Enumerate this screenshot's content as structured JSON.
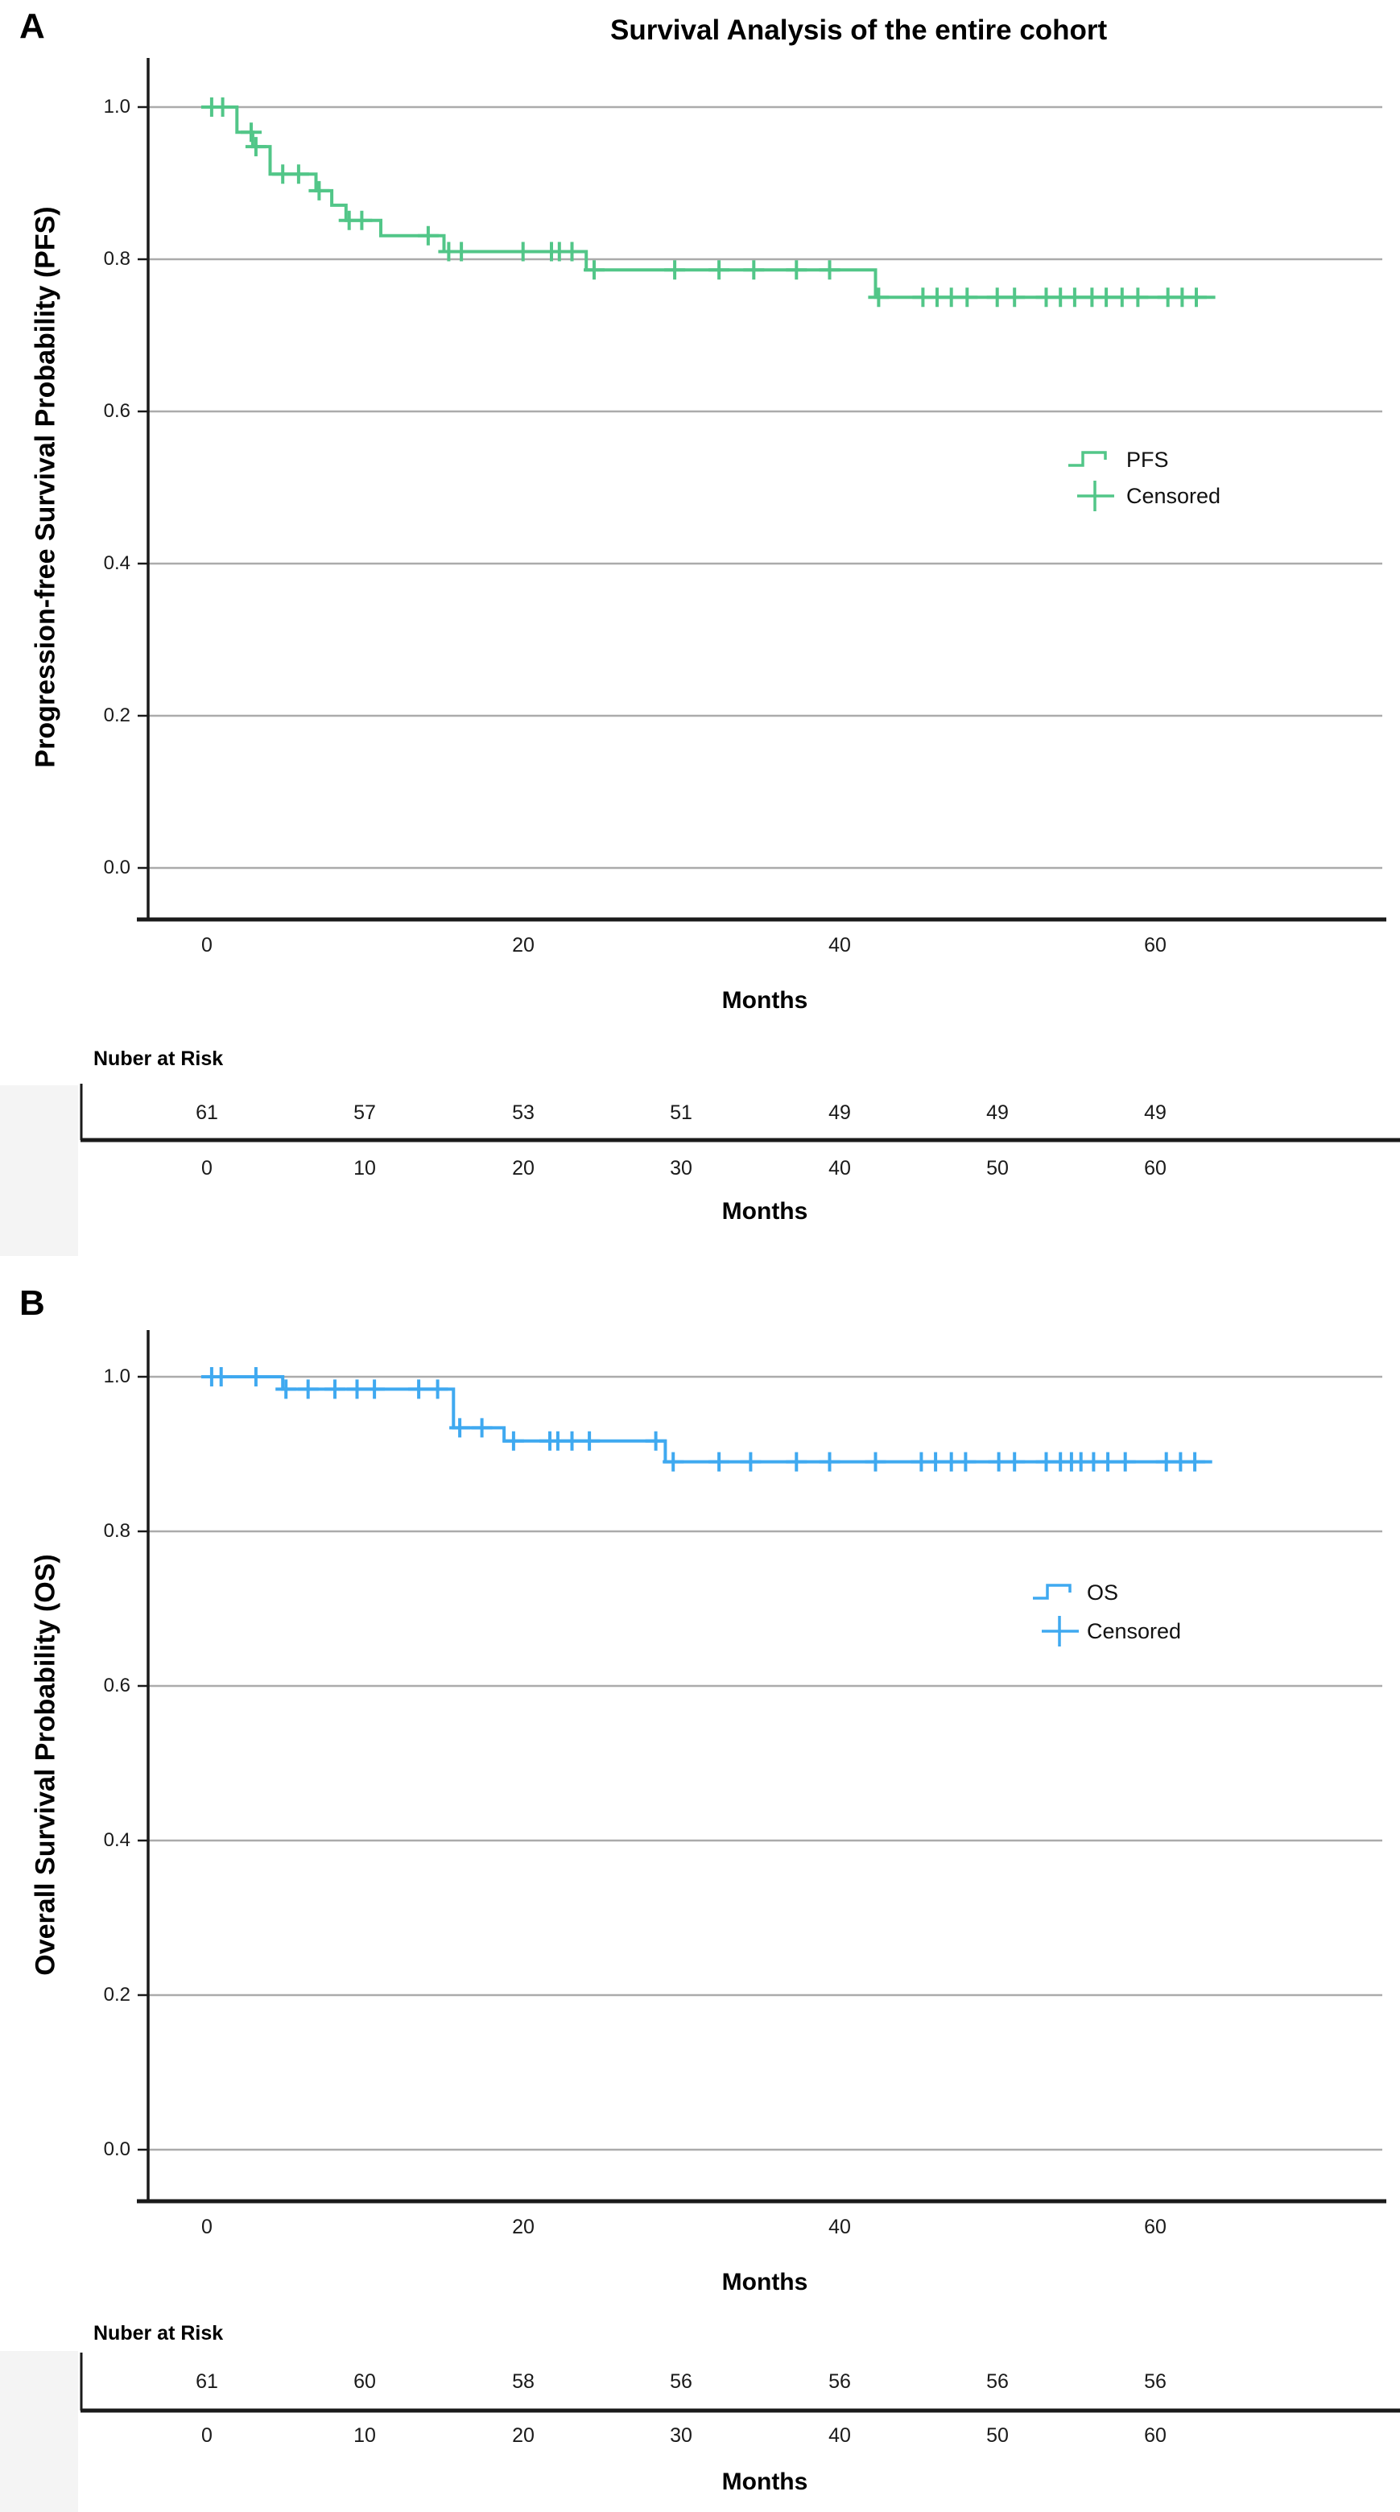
{
  "chart_data": [
    {
      "type": "line",
      "chart_kind": "kaplan-meier-step",
      "panel_label": "A",
      "title": "Survival Analysis of the entire cohort",
      "xlabel": "Months",
      "ylabel": "Progression-free Survival Probability (PFS)",
      "xlim": [
        -4,
        75
      ],
      "ylim": [
        -0.05,
        1.05
      ],
      "grid": true,
      "x_tick_labels": [
        "0",
        "20",
        "40",
        "60"
      ],
      "x_tick_values": [
        0,
        20,
        40,
        60
      ],
      "y_tick_labels": [
        "1.0",
        "0.8",
        "0.6",
        "0.4",
        "0.2",
        "0.0"
      ],
      "y_tick_values": [
        1.0,
        0.8,
        0.6,
        0.4,
        0.2,
        0.0
      ],
      "line_color": "#52C688",
      "legend": {
        "position": "right-center",
        "series_label": "PFS",
        "censored_label": "Censored"
      },
      "series": [
        {
          "name": "PFS",
          "steps": [
            [
              0,
              1.0
            ],
            [
              1.9,
              0.967
            ],
            [
              2.9,
              0.948
            ],
            [
              4.0,
              0.912
            ],
            [
              6.9,
              0.89
            ],
            [
              7.9,
              0.871
            ],
            [
              8.8,
              0.851
            ],
            [
              11.0,
              0.831
            ],
            [
              15.0,
              0.81
            ],
            [
              24.0,
              0.786
            ],
            [
              42.3,
              0.75
            ]
          ],
          "end_month": 63.8
        }
      ],
      "censored_points": [
        [
          0.3,
          1.0
        ],
        [
          1.0,
          1.0
        ],
        [
          2.8,
          0.967
        ],
        [
          3.1,
          0.948
        ],
        [
          4.8,
          0.912
        ],
        [
          5.8,
          0.912
        ],
        [
          7.1,
          0.89
        ],
        [
          9.0,
          0.851
        ],
        [
          9.8,
          0.851
        ],
        [
          14.0,
          0.831
        ],
        [
          15.3,
          0.81
        ],
        [
          16.1,
          0.81
        ],
        [
          20.0,
          0.81
        ],
        [
          21.8,
          0.81
        ],
        [
          22.3,
          0.81
        ],
        [
          23.1,
          0.81
        ],
        [
          24.5,
          0.786
        ],
        [
          29.6,
          0.786
        ],
        [
          32.4,
          0.786
        ],
        [
          34.6,
          0.786
        ],
        [
          37.3,
          0.786
        ],
        [
          39.4,
          0.786
        ],
        [
          42.5,
          0.75
        ],
        [
          45.3,
          0.75
        ],
        [
          46.2,
          0.75
        ],
        [
          47.1,
          0.75
        ],
        [
          48.1,
          0.75
        ],
        [
          50.0,
          0.75
        ],
        [
          51.1,
          0.75
        ],
        [
          53.1,
          0.75
        ],
        [
          54.0,
          0.75
        ],
        [
          54.9,
          0.75
        ],
        [
          56.0,
          0.75
        ],
        [
          56.9,
          0.75
        ],
        [
          57.9,
          0.75
        ],
        [
          58.9,
          0.75
        ],
        [
          60.8,
          0.75
        ],
        [
          61.7,
          0.75
        ],
        [
          62.6,
          0.75
        ]
      ],
      "number_at_risk": {
        "header": "Nuber at Risk",
        "months": [
          "0",
          "10",
          "20",
          "30",
          "40",
          "50",
          "60"
        ],
        "counts": [
          "61",
          "57",
          "53",
          "51",
          "49",
          "49",
          "49"
        ],
        "xlabel": "Months"
      }
    },
    {
      "type": "line",
      "chart_kind": "kaplan-meier-step",
      "panel_label": "B",
      "title": "",
      "xlabel": "Months",
      "ylabel": "Overall Survival Probability (OS)",
      "xlim": [
        -4,
        75
      ],
      "ylim": [
        -0.05,
        1.05
      ],
      "grid": true,
      "x_tick_labels": [
        "0",
        "20",
        "40",
        "60"
      ],
      "x_tick_values": [
        0,
        20,
        40,
        60
      ],
      "y_tick_labels": [
        "1.0",
        "0.8",
        "0.6",
        "0.4",
        "0.2",
        "0.0"
      ],
      "y_tick_values": [
        1.0,
        0.8,
        0.6,
        0.4,
        0.2,
        0.0
      ],
      "line_color": "#3FA9F0",
      "legend": {
        "position": "right-center",
        "series_label": "OS",
        "censored_label": "Censored"
      },
      "series": [
        {
          "name": "OS",
          "steps": [
            [
              0,
              1.0
            ],
            [
              4.8,
              0.984
            ],
            [
              15.6,
              0.934
            ],
            [
              18.8,
              0.917
            ],
            [
              29.0,
              0.89
            ]
          ],
          "end_month": 63.6
        }
      ],
      "censored_points": [
        [
          0.3,
          1.0
        ],
        [
          0.9,
          1.0
        ],
        [
          3.1,
          1.0
        ],
        [
          5.0,
          0.984
        ],
        [
          6.4,
          0.984
        ],
        [
          8.1,
          0.984
        ],
        [
          9.5,
          0.984
        ],
        [
          10.6,
          0.984
        ],
        [
          13.4,
          0.984
        ],
        [
          14.6,
          0.984
        ],
        [
          16.0,
          0.934
        ],
        [
          17.4,
          0.934
        ],
        [
          19.4,
          0.917
        ],
        [
          21.7,
          0.917
        ],
        [
          22.2,
          0.917
        ],
        [
          23.1,
          0.917
        ],
        [
          24.2,
          0.917
        ],
        [
          28.4,
          0.917
        ],
        [
          29.5,
          0.89
        ],
        [
          32.4,
          0.89
        ],
        [
          34.4,
          0.89
        ],
        [
          37.3,
          0.89
        ],
        [
          39.4,
          0.89
        ],
        [
          42.3,
          0.89
        ],
        [
          45.2,
          0.89
        ],
        [
          46.1,
          0.89
        ],
        [
          47.1,
          0.89
        ],
        [
          48.0,
          0.89
        ],
        [
          50.1,
          0.89
        ],
        [
          51.1,
          0.89
        ],
        [
          53.1,
          0.89
        ],
        [
          54.0,
          0.89
        ],
        [
          54.7,
          0.89
        ],
        [
          55.3,
          0.89
        ],
        [
          56.1,
          0.89
        ],
        [
          57.0,
          0.89
        ],
        [
          58.1,
          0.89
        ],
        [
          60.7,
          0.89
        ],
        [
          61.6,
          0.89
        ],
        [
          62.5,
          0.89
        ]
      ],
      "number_at_risk": {
        "header": "Nuber at Risk",
        "months": [
          "0",
          "10",
          "20",
          "30",
          "40",
          "50",
          "60"
        ],
        "counts": [
          "61",
          "60",
          "58",
          "56",
          "56",
          "56",
          "56"
        ],
        "xlabel": "Months"
      }
    }
  ],
  "colors": {
    "pfs_green": "#52C688",
    "os_blue": "#3FA9F0",
    "gridline": "#ababab",
    "axis": "#1a1a1a"
  }
}
